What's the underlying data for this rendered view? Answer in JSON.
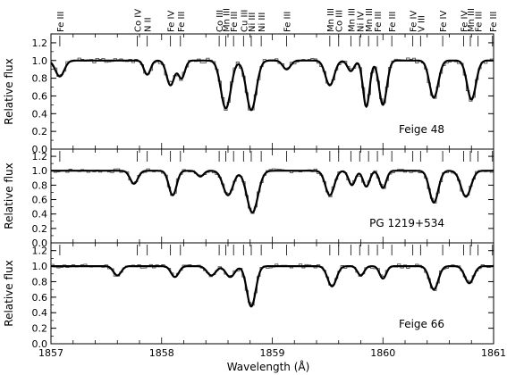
{
  "chart_data": {
    "type": "line",
    "xlabel": "Wavelength (Å)",
    "ylabel": "Relative flux",
    "xlim": [
      1857,
      1861
    ],
    "xticks": [
      1857,
      1858,
      1859,
      1860,
      1861
    ],
    "ylim": [
      0.0,
      1.3
    ],
    "yticks": [
      0.0,
      0.2,
      0.4,
      0.6,
      0.8,
      1.0,
      1.2
    ],
    "line_ids": [
      {
        "label": "Fe III",
        "wl": 1857.08
      },
      {
        "label": "Co IV",
        "wl": 1857.78
      },
      {
        "label": "N II",
        "wl": 1857.87
      },
      {
        "label": "Fe IV",
        "wl": 1858.08
      },
      {
        "label": "Fe III",
        "wl": 1858.17
      },
      {
        "label": "Co III",
        "wl": 1858.52
      },
      {
        "label": "Mn III",
        "wl": 1858.58
      },
      {
        "label": "Fe III",
        "wl": 1858.65
      },
      {
        "label": "Cu III",
        "wl": 1858.74
      },
      {
        "label": "Ni III",
        "wl": 1858.81
      },
      {
        "label": "Ni III",
        "wl": 1858.9
      },
      {
        "label": "Fe III",
        "wl": 1859.13
      },
      {
        "label": "Mn III",
        "wl": 1859.52
      },
      {
        "label": "Co III",
        "wl": 1859.6
      },
      {
        "label": "Mn III",
        "wl": 1859.71
      },
      {
        "label": "Ni IV",
        "wl": 1859.79
      },
      {
        "label": "Mn III",
        "wl": 1859.87
      },
      {
        "label": "Fe III",
        "wl": 1859.95
      },
      {
        "label": "Fe III",
        "wl": 1860.08
      },
      {
        "label": "Fe IV",
        "wl": 1860.27
      },
      {
        "label": "V III",
        "wl": 1860.34
      },
      {
        "label": "Fe IV",
        "wl": 1860.54
      },
      {
        "label": "Fe IV",
        "wl": 1860.73
      },
      {
        "label": "Mn III",
        "wl": 1860.79
      },
      {
        "label": "Fe III",
        "wl": 1860.86
      },
      {
        "label": "Fe III",
        "wl": 1860.99
      }
    ],
    "panels": [
      {
        "star": "Feige 48",
        "lines": [
          {
            "wl": 1857.08,
            "depth": 0.18,
            "width": 0.04
          },
          {
            "wl": 1857.87,
            "depth": 0.16,
            "width": 0.03
          },
          {
            "wl": 1858.08,
            "depth": 0.28,
            "width": 0.035
          },
          {
            "wl": 1858.18,
            "depth": 0.2,
            "width": 0.03
          },
          {
            "wl": 1858.58,
            "depth": 0.54,
            "width": 0.045
          },
          {
            "wl": 1858.81,
            "depth": 0.56,
            "width": 0.045
          },
          {
            "wl": 1859.13,
            "depth": 0.1,
            "width": 0.035
          },
          {
            "wl": 1859.52,
            "depth": 0.28,
            "width": 0.04
          },
          {
            "wl": 1859.71,
            "depth": 0.12,
            "width": 0.03
          },
          {
            "wl": 1859.85,
            "depth": 0.52,
            "width": 0.03
          },
          {
            "wl": 1860.0,
            "depth": 0.5,
            "width": 0.035
          },
          {
            "wl": 1860.46,
            "depth": 0.42,
            "width": 0.04
          },
          {
            "wl": 1860.8,
            "depth": 0.44,
            "width": 0.04
          }
        ]
      },
      {
        "star": "PG 1219+534",
        "lines": [
          {
            "wl": 1857.75,
            "depth": 0.18,
            "width": 0.035
          },
          {
            "wl": 1858.1,
            "depth": 0.34,
            "width": 0.035
          },
          {
            "wl": 1858.35,
            "depth": 0.08,
            "width": 0.03
          },
          {
            "wl": 1858.6,
            "depth": 0.34,
            "width": 0.045
          },
          {
            "wl": 1858.82,
            "depth": 0.58,
            "width": 0.05
          },
          {
            "wl": 1859.52,
            "depth": 0.34,
            "width": 0.04
          },
          {
            "wl": 1859.72,
            "depth": 0.2,
            "width": 0.03
          },
          {
            "wl": 1859.85,
            "depth": 0.22,
            "width": 0.03
          },
          {
            "wl": 1860.0,
            "depth": 0.24,
            "width": 0.03
          },
          {
            "wl": 1860.46,
            "depth": 0.44,
            "width": 0.04
          },
          {
            "wl": 1860.75,
            "depth": 0.36,
            "width": 0.045
          }
        ]
      },
      {
        "star": "Feige 66",
        "lines": [
          {
            "wl": 1857.6,
            "depth": 0.12,
            "width": 0.035
          },
          {
            "wl": 1858.12,
            "depth": 0.14,
            "width": 0.035
          },
          {
            "wl": 1858.45,
            "depth": 0.12,
            "width": 0.04
          },
          {
            "wl": 1858.62,
            "depth": 0.14,
            "width": 0.04
          },
          {
            "wl": 1858.81,
            "depth": 0.52,
            "width": 0.04
          },
          {
            "wl": 1859.54,
            "depth": 0.26,
            "width": 0.04
          },
          {
            "wl": 1859.8,
            "depth": 0.12,
            "width": 0.03
          },
          {
            "wl": 1860.0,
            "depth": 0.16,
            "width": 0.03
          },
          {
            "wl": 1860.46,
            "depth": 0.3,
            "width": 0.04
          },
          {
            "wl": 1860.78,
            "depth": 0.22,
            "width": 0.04
          }
        ]
      }
    ]
  }
}
